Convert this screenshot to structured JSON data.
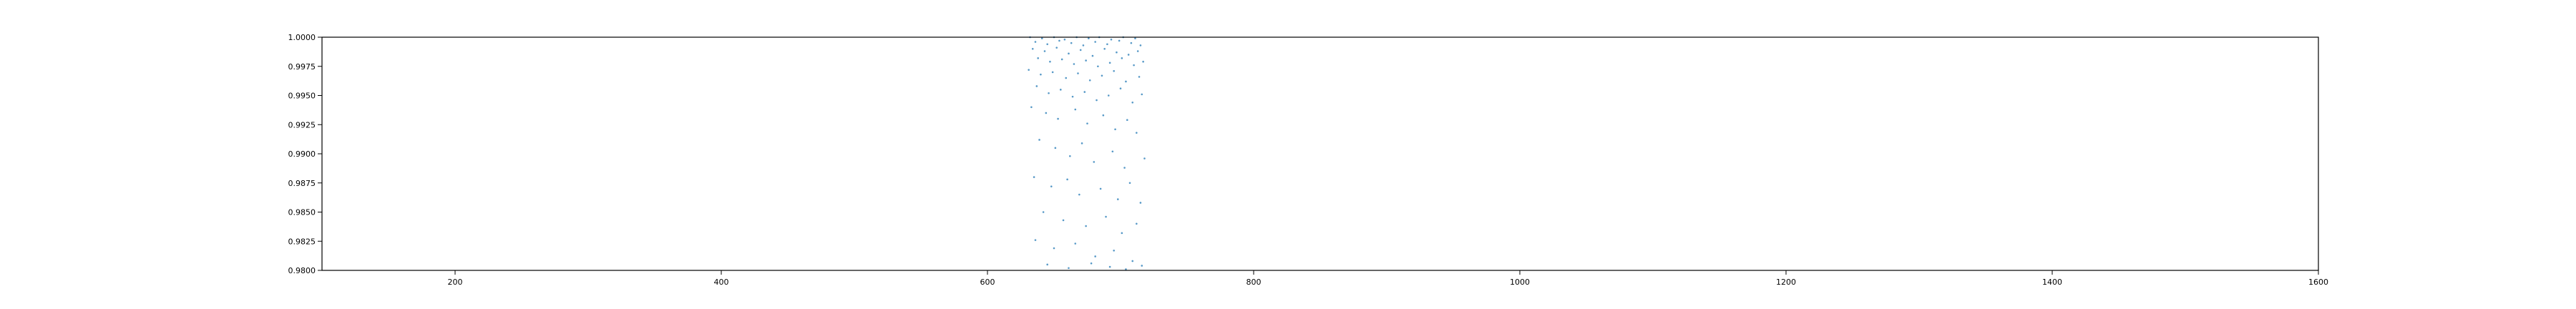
{
  "chart_data": {
    "type": "scatter",
    "title": "",
    "xlabel": "",
    "ylabel": "",
    "xlim": [
      100,
      1600
    ],
    "ylim": [
      0.98,
      1.0
    ],
    "x_ticks": [
      200,
      400,
      600,
      800,
      1000,
      1200,
      1400,
      1600
    ],
    "x_tick_labels": [
      "200",
      "400",
      "600",
      "800",
      "1000",
      "1200",
      "1400",
      "1600"
    ],
    "y_ticks": [
      0.98,
      0.9825,
      0.985,
      0.9875,
      0.99,
      0.9925,
      0.995,
      0.9975,
      1.0
    ],
    "y_tick_labels": [
      "0.9800",
      "0.9825",
      "0.9850",
      "0.9875",
      "0.9900",
      "0.9925",
      "0.9950",
      "0.9975",
      "1.0000"
    ],
    "grid": false,
    "legend": "none",
    "marker_color": "#1f77b4",
    "series": [
      {
        "values": [
          [
            632,
            1.0
          ],
          [
            641,
            0.9999
          ],
          [
            650,
            1.0
          ],
          [
            658,
            0.9998
          ],
          [
            667,
            1.0
          ],
          [
            676,
            0.9999
          ],
          [
            684,
            1.0
          ],
          [
            693,
            0.9998
          ],
          [
            702,
            1.0
          ],
          [
            711,
            0.9999
          ],
          [
            636,
            0.9996
          ],
          [
            645,
            0.9994
          ],
          [
            654,
            0.9997
          ],
          [
            663,
            0.9995
          ],
          [
            672,
            0.9993
          ],
          [
            681,
            0.9996
          ],
          [
            690,
            0.9994
          ],
          [
            699,
            0.9997
          ],
          [
            708,
            0.9995
          ],
          [
            715,
            0.9993
          ],
          [
            634,
            0.999
          ],
          [
            643,
            0.9988
          ],
          [
            652,
            0.9991
          ],
          [
            661,
            0.9986
          ],
          [
            670,
            0.9989
          ],
          [
            679,
            0.9984
          ],
          [
            688,
            0.999
          ],
          [
            697,
            0.9987
          ],
          [
            706,
            0.9985
          ],
          [
            713,
            0.9988
          ],
          [
            638,
            0.9982
          ],
          [
            647,
            0.9979
          ],
          [
            656,
            0.9981
          ],
          [
            665,
            0.9977
          ],
          [
            674,
            0.998
          ],
          [
            683,
            0.9975
          ],
          [
            692,
            0.9978
          ],
          [
            701,
            0.9982
          ],
          [
            710,
            0.9976
          ],
          [
            717,
            0.9979
          ],
          [
            631,
            0.9972
          ],
          [
            640,
            0.9968
          ],
          [
            649,
            0.997
          ],
          [
            659,
            0.9965
          ],
          [
            668,
            0.9969
          ],
          [
            677,
            0.9963
          ],
          [
            686,
            0.9967
          ],
          [
            695,
            0.9971
          ],
          [
            704,
            0.9962
          ],
          [
            714,
            0.9966
          ],
          [
            637,
            0.9958
          ],
          [
            646,
            0.9952
          ],
          [
            655,
            0.9955
          ],
          [
            664,
            0.9949
          ],
          [
            673,
            0.9953
          ],
          [
            682,
            0.9946
          ],
          [
            691,
            0.995
          ],
          [
            700,
            0.9956
          ],
          [
            709,
            0.9944
          ],
          [
            716,
            0.9951
          ],
          [
            633,
            0.994
          ],
          [
            644,
            0.9935
          ],
          [
            653,
            0.993
          ],
          [
            666,
            0.9938
          ],
          [
            675,
            0.9926
          ],
          [
            687,
            0.9933
          ],
          [
            696,
            0.9921
          ],
          [
            705,
            0.9929
          ],
          [
            712,
            0.9918
          ],
          [
            639,
            0.9912
          ],
          [
            651,
            0.9905
          ],
          [
            662,
            0.9898
          ],
          [
            671,
            0.9909
          ],
          [
            680,
            0.9893
          ],
          [
            694,
            0.9902
          ],
          [
            703,
            0.9888
          ],
          [
            718,
            0.9896
          ],
          [
            635,
            0.988
          ],
          [
            648,
            0.9872
          ],
          [
            660,
            0.9878
          ],
          [
            669,
            0.9865
          ],
          [
            685,
            0.987
          ],
          [
            698,
            0.9861
          ],
          [
            707,
            0.9875
          ],
          [
            715,
            0.9858
          ],
          [
            642,
            0.985
          ],
          [
            657,
            0.9843
          ],
          [
            674,
            0.9838
          ],
          [
            689,
            0.9846
          ],
          [
            701,
            0.9832
          ],
          [
            712,
            0.984
          ],
          [
            636,
            0.9826
          ],
          [
            650,
            0.9819
          ],
          [
            666,
            0.9823
          ],
          [
            681,
            0.9812
          ],
          [
            695,
            0.9817
          ],
          [
            709,
            0.9808
          ],
          [
            645,
            0.9805
          ],
          [
            661,
            0.9802
          ],
          [
            678,
            0.9806
          ],
          [
            692,
            0.9803
          ],
          [
            704,
            0.9801
          ],
          [
            716,
            0.9804
          ]
        ]
      }
    ]
  }
}
